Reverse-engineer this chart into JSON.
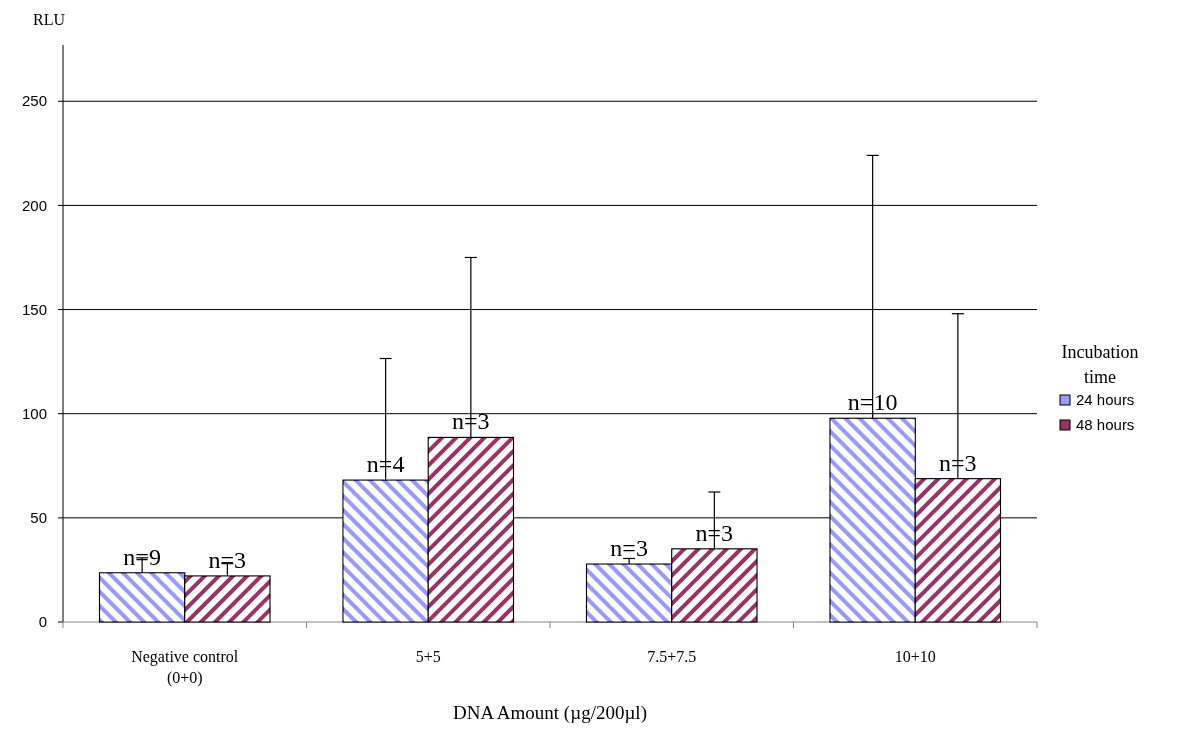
{
  "chart_data": {
    "type": "bar",
    "ylabel": "RLU",
    "xlabel": "DNA Amount (µg/200µl)",
    "legend_title": "Incubation time",
    "categories": [
      "Negative control (0+0)",
      "5+5",
      "7.5+7.5",
      "10+10"
    ],
    "series": [
      {
        "name": "24 hours",
        "color": "#9999ff",
        "values": [
          23.6,
          68.1,
          27.8,
          97.8
        ],
        "errors": [
          [
            23.6,
            30.8
          ],
          [
            68.1,
            126.5
          ],
          [
            27.8,
            30.5
          ],
          [
            97.8,
            224
          ]
        ]
      },
      {
        "name": "48 hours",
        "color": "#993366",
        "values": [
          22.1,
          88.6,
          35.1,
          68.8
        ],
        "errors": [
          [
            22.1,
            28
          ],
          [
            88.6,
            175
          ],
          [
            35.1,
            62.4
          ],
          [
            68.8,
            148
          ]
        ]
      }
    ],
    "annotations": [
      {
        "text": "n=9",
        "x": "Negative control (0+0)",
        "y": 23.6
      },
      {
        "text": "n=4",
        "x": "5+5",
        "y": 68.1
      },
      {
        "text": "n=3",
        "x": "7.5+7.5",
        "y": 27.8
      },
      {
        "text": "n=10",
        "x": "10+10",
        "y": 97.8
      },
      {
        "text": "n=3",
        "x": "Negative control (0+0)",
        "y": 22.1
      },
      {
        "text": "n=3",
        "x": "5+5",
        "y": 88.6
      },
      {
        "text": "n=3",
        "x": "7.5+7.5",
        "y": 35.1
      },
      {
        "text": "n=3",
        "x": "10+10",
        "y": 68.8
      }
    ],
    "ylim": [
      0,
      277
    ],
    "yticks": [
      0,
      50,
      100,
      150,
      200,
      250
    ],
    "grid": "y",
    "legend": "right"
  }
}
